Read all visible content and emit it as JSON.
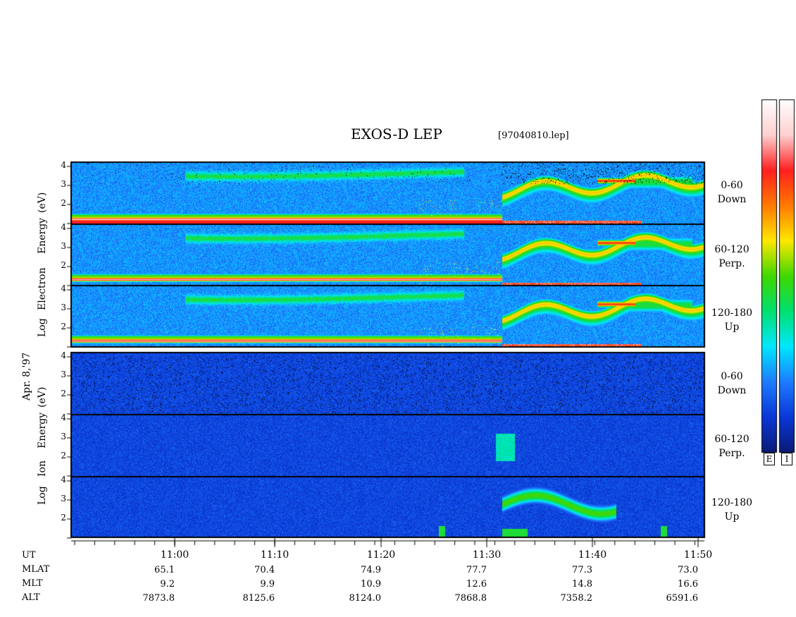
{
  "header": {
    "title": "EXOS-D LEP",
    "file": "[97040810.lep]"
  },
  "chart_data": {
    "type": "heatmap",
    "title": "EXOS-D LEP",
    "date_label": "Apr. 8,'97",
    "y_ticks": [
      "4",
      "3",
      "2"
    ],
    "groups": [
      {
        "species": "Electron",
        "ylabel_words": [
          "Log",
          "Electron",
          "Energy",
          "(eV)"
        ],
        "panels": [
          {
            "pitch_range": "0-60",
            "direction": "Down"
          },
          {
            "pitch_range": "60-120",
            "direction": "Perp."
          },
          {
            "pitch_range": "120-180",
            "direction": "Up"
          }
        ]
      },
      {
        "species": "Ion",
        "ylabel_words": [
          "Log",
          "Ion",
          "Energy",
          "(eV)"
        ],
        "panels": [
          {
            "pitch_range": "0-60",
            "direction": "Down"
          },
          {
            "pitch_range": "60-120",
            "direction": "Perp."
          },
          {
            "pitch_range": "120-180",
            "direction": "Up"
          }
        ]
      }
    ],
    "x_axis": {
      "row_labels": [
        "UT",
        "MLAT",
        "MLT",
        "ALT"
      ],
      "ticks": [
        {
          "ut": "11:00",
          "mlat": "65.1",
          "mlt": "9.2",
          "alt": "7873.8"
        },
        {
          "ut": "11:10",
          "mlat": "70.4",
          "mlt": "9.9",
          "alt": "8125.6"
        },
        {
          "ut": "11:20",
          "mlat": "74.9",
          "mlt": "10.9",
          "alt": "8124.0"
        },
        {
          "ut": "11:30",
          "mlat": "77.7",
          "mlt": "12.6",
          "alt": "7868.8"
        },
        {
          "ut": "11:40",
          "mlat": "77.3",
          "mlt": "14.8",
          "alt": "7358.2"
        },
        {
          "ut": "11:50",
          "mlat": "73.0",
          "mlt": "16.6",
          "alt": "6591.6"
        }
      ]
    },
    "colorbars": [
      {
        "label": "E"
      },
      {
        "label": "I"
      }
    ],
    "colormap": [
      "#0a1a78",
      "#0a38d8",
      "#1e7cff",
      "#00e8ff",
      "#00e070",
      "#40d800",
      "#ffe800",
      "#ff7a00",
      "#ff2020",
      "#ffd0d0",
      "#ffffff"
    ]
  }
}
